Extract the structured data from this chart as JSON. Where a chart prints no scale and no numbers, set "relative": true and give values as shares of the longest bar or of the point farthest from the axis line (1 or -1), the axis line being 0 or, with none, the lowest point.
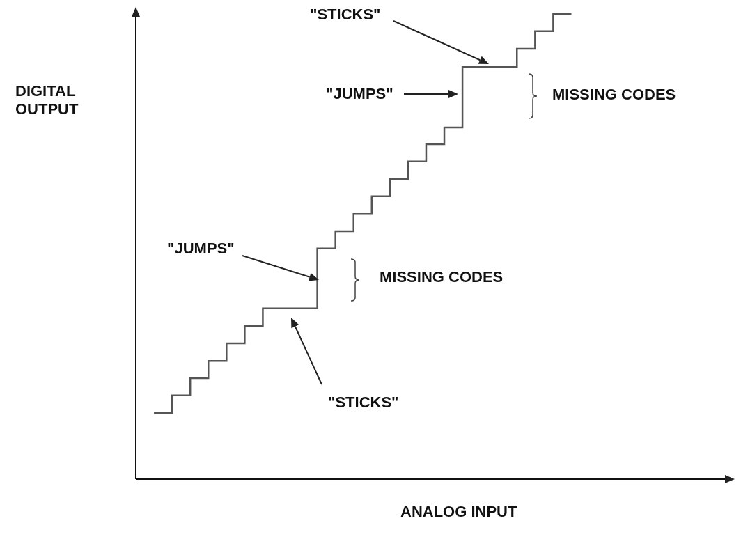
{
  "chart_data": {
    "type": "step",
    "relative": true,
    "xlabel": "ANALOG INPUT",
    "ylabel": "DIGITAL OUTPUT",
    "tick_labels": false,
    "marker": "none",
    "legend": false,
    "categories": [
      null,
      null,
      null,
      null,
      null,
      null,
      null,
      null,
      null,
      null,
      null,
      null,
      null,
      null,
      null,
      null,
      null,
      null,
      null,
      null,
      null,
      null,
      null,
      null,
      null,
      null,
      null,
      null,
      null,
      null,
      null,
      null,
      null,
      null
    ],
    "series": [
      {
        "color": "#555555",
        "values": [
          null,
          0.142,
          0.18,
          0.217,
          0.254,
          0.292,
          0.329,
          0.367,
          0.367,
          0.367,
          0.496,
          0.533,
          0.57,
          0.608,
          0.645,
          0.683,
          0.72,
          0.756,
          0.886,
          0.886,
          0.886,
          0.925,
          0.963,
          1.0,
          1.0,
          null,
          null,
          null,
          null,
          null,
          null,
          null,
          null,
          null
        ]
      }
    ],
    "annotations": [
      "\"STICKS\"",
      "\"JUMPS\"",
      "MISSING CODES",
      "\"JUMPS\"",
      "MISSING CODES",
      "\"STICKS\""
    ]
  }
}
